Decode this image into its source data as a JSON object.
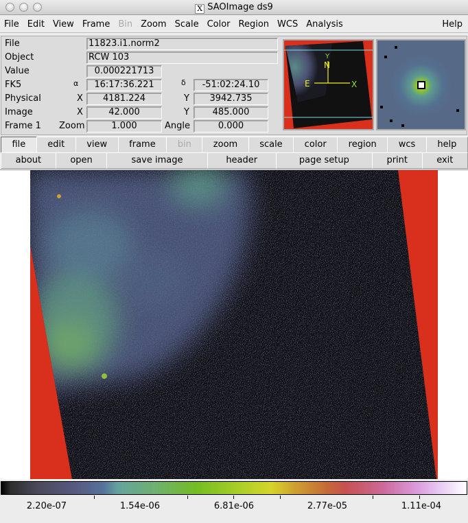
{
  "window": {
    "title": "SAOImage ds9"
  },
  "menu": [
    "File",
    "Edit",
    "View",
    "Frame",
    "Bin",
    "Zoom",
    "Scale",
    "Color",
    "Region",
    "WCS",
    "Analysis"
  ],
  "menu_help": "Help",
  "info": {
    "file_label": "File",
    "file_value": "11823.i1.norm2",
    "object_label": "Object",
    "object_value": "RCW 103",
    "value_label": "Value",
    "value_value": "0.000221713",
    "fk5_label": "FK5",
    "alpha": "α",
    "ra": "16:17:36.221",
    "delta": "δ",
    "dec": "-51:02:24.10",
    "physical_label": "Physical",
    "x": "X",
    "y": "Y",
    "phys_x": "4181.224",
    "phys_y": "3942.735",
    "image_label": "Image",
    "img_x": "42.000",
    "img_y": "485.000",
    "frame_label": "Frame 1",
    "zoom_label": "Zoom",
    "zoom_value": "1.000",
    "angle_label": "Angle",
    "angle_value": "0.000"
  },
  "panner": {
    "n": "N",
    "e": "E",
    "x": "X",
    "y": "Y"
  },
  "buttons_row1": [
    "file",
    "edit",
    "view",
    "frame",
    "bin",
    "zoom",
    "scale",
    "color",
    "region",
    "wcs",
    "help"
  ],
  "buttons_row2": [
    "about",
    "open",
    "save image",
    "header",
    "page setup",
    "print",
    "exit"
  ],
  "colorbar": {
    "labels": [
      "2.20e-07",
      "1.54e-06",
      "6.81e-06",
      "2.77e-05",
      "1.11e-04"
    ]
  },
  "colors": {
    "background_red": "#d8301c",
    "compass": "#f0f020",
    "pan_box": "#80e0e0"
  }
}
